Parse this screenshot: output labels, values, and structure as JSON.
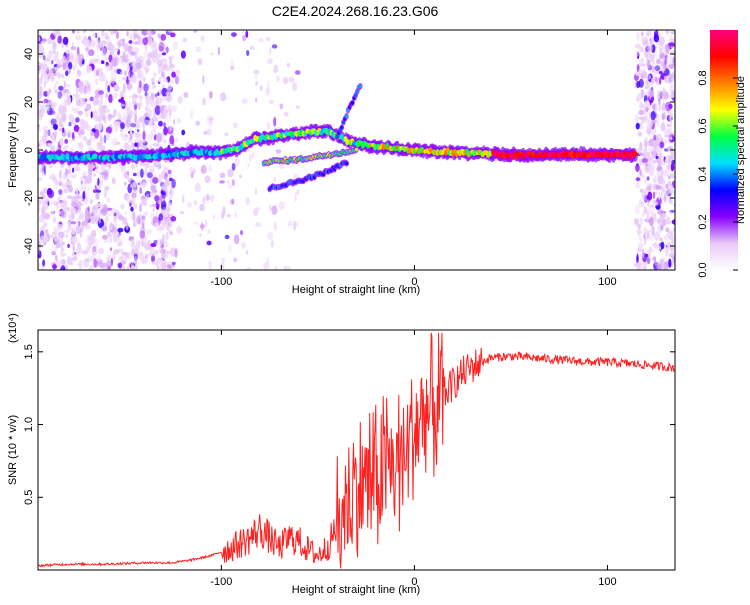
{
  "figure": {
    "title": "C2E4.2024.268.16.23.G06"
  },
  "chart_data": [
    {
      "type": "heatmap",
      "xlabel": "Height of straight line (km)",
      "ylabel": "Frequency (Hz)",
      "xlim": [
        -195,
        135
      ],
      "ylim": [
        -50,
        50
      ],
      "xticks": [
        -100,
        0,
        100
      ],
      "xtick_labels": [
        "-100",
        "0",
        "100"
      ],
      "yticks": [
        -40,
        -20,
        0,
        20,
        40
      ],
      "ytick_labels": [
        "-40",
        "-20",
        "0",
        "20",
        "40"
      ],
      "colorbar": {
        "label": "Normalized spectral amplitude",
        "range": [
          0,
          1
        ],
        "ticks": [
          0.0,
          0.2,
          0.4,
          0.6,
          0.8
        ],
        "tick_labels": [
          "0.0",
          "0.2",
          "0.4",
          "0.6",
          "0.8"
        ],
        "colors": [
          "#ffffff",
          "#e8c8f8",
          "#8800ff",
          "#0000ff",
          "#00e0ff",
          "#00ff40",
          "#ffff00",
          "#ff8000",
          "#ff0000",
          "#ff0080"
        ]
      },
      "main_ridge": [
        {
          "x": -195,
          "y": -3
        },
        {
          "x": -170,
          "y": -3
        },
        {
          "x": -150,
          "y": -3
        },
        {
          "x": -130,
          "y": -2
        },
        {
          "x": -115,
          "y": -1
        },
        {
          "x": -100,
          "y": -1
        },
        {
          "x": -90,
          "y": 1
        },
        {
          "x": -82,
          "y": 5
        },
        {
          "x": -78,
          "y": 5
        },
        {
          "x": -60,
          "y": 7
        },
        {
          "x": -45,
          "y": 8
        },
        {
          "x": -35,
          "y": 4
        },
        {
          "x": -25,
          "y": 2
        },
        {
          "x": -15,
          "y": 1
        },
        {
          "x": 0,
          "y": 0
        },
        {
          "x": 20,
          "y": -1
        },
        {
          "x": 50,
          "y": -2
        },
        {
          "x": 80,
          "y": -2
        },
        {
          "x": 115,
          "y": -2
        }
      ],
      "branch_ridges": [
        [
          {
            "x": -78,
            "y": -5
          },
          {
            "x": -60,
            "y": -4
          },
          {
            "x": -45,
            "y": -2
          },
          {
            "x": -30,
            "y": 0
          }
        ],
        [
          {
            "x": -75,
            "y": -16
          },
          {
            "x": -60,
            "y": -13
          },
          {
            "x": -45,
            "y": -9
          },
          {
            "x": -35,
            "y": -5
          }
        ],
        [
          {
            "x": -40,
            "y": 5
          },
          {
            "x": -35,
            "y": 15
          },
          {
            "x": -28,
            "y": 27
          }
        ]
      ]
    },
    {
      "type": "line",
      "xlabel": "Height of straight line (km)",
      "ylabel": "SNR (10 * v/v)",
      "y_multiplier_label": "(x10⁴)",
      "xlim": [
        -195,
        135
      ],
      "ylim": [
        0,
        1.65
      ],
      "xticks": [
        -100,
        0,
        100
      ],
      "xtick_labels": [
        "-100",
        "0",
        "100"
      ],
      "yticks": [
        0.5,
        1.0,
        1.5
      ],
      "ytick_labels": [
        "0.5",
        "1.0",
        "1.5"
      ],
      "series": [
        {
          "color": "#ff2020",
          "x": [
            -195,
            -180,
            -160,
            -140,
            -125,
            -115,
            -105,
            -95,
            -85,
            -80,
            -75,
            -70,
            -65,
            -60,
            -55,
            -50,
            -45,
            -40,
            -35,
            -30,
            -25,
            -20,
            -15,
            -10,
            -5,
            0,
            5,
            10,
            15,
            20,
            25,
            30,
            40,
            50,
            60,
            70,
            80,
            90,
            100,
            110,
            120,
            135
          ],
          "values": [
            0.03,
            0.04,
            0.04,
            0.05,
            0.05,
            0.07,
            0.1,
            0.15,
            0.22,
            0.28,
            0.22,
            0.15,
            0.22,
            0.2,
            0.14,
            0.1,
            0.16,
            0.3,
            0.45,
            0.55,
            0.62,
            0.6,
            0.7,
            0.72,
            0.8,
            0.95,
            1.05,
            1.1,
            1.2,
            1.28,
            1.35,
            1.4,
            1.46,
            1.47,
            1.46,
            1.45,
            1.44,
            1.43,
            1.43,
            1.42,
            1.41,
            1.39
          ]
        }
      ]
    }
  ]
}
